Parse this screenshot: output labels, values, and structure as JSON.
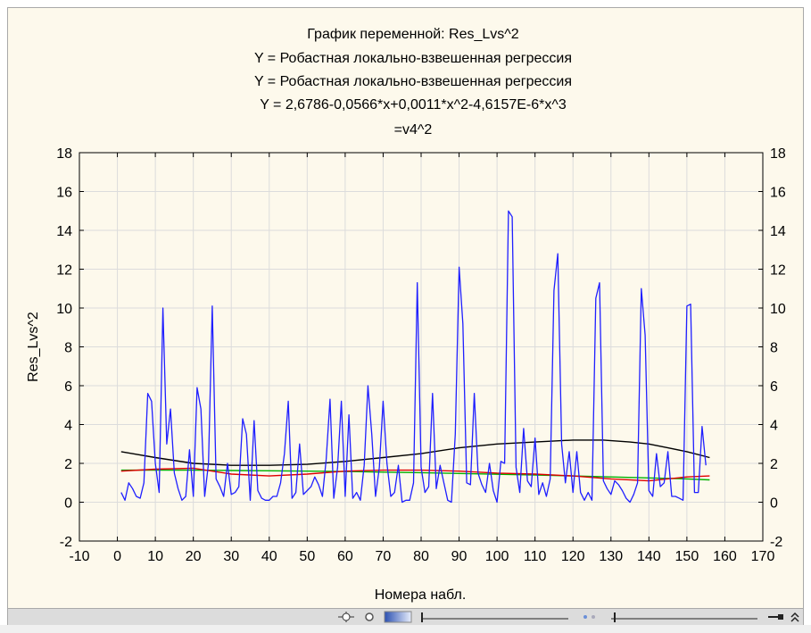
{
  "chart_data": {
    "type": "line",
    "title_lines": [
      "График переменной: Res_Lvs^2",
      "Y = Робастная локально-взвешенная регрессия",
      "Y = Робастная локально-взвешенная регрессия",
      "Y = 2,6786-0,0566*x+0,0011*x^2-4,6157E-6*x^3",
      "=v4^2"
    ],
    "xlabel": "Номера набл.",
    "ylabel": "Res_Lvs^2",
    "xlim": [
      -10,
      170
    ],
    "ylim": [
      -2,
      18
    ],
    "x_ticks": [
      "-10",
      "0",
      "10",
      "20",
      "30",
      "40",
      "50",
      "60",
      "70",
      "80",
      "90",
      "100",
      "110",
      "120",
      "130",
      "140",
      "150",
      "160",
      "170"
    ],
    "y_ticks": [
      "-2",
      "0",
      "2",
      "4",
      "6",
      "8",
      "10",
      "12",
      "14",
      "16",
      "18"
    ],
    "grid": true,
    "colors": {
      "data": "#1f1fff",
      "cubic_fit": "#000000",
      "robust_fit_1": "#e00000",
      "robust_fit_2": "#00b000",
      "background": "#fdf9ec",
      "grid": "#dcdcdc"
    },
    "series": [
      {
        "key": "data",
        "x_start": 1,
        "values": [
          0.5,
          0.1,
          1.0,
          0.7,
          0.3,
          0.2,
          1.0,
          5.6,
          5.2,
          2.0,
          0.5,
          10.0,
          3.0,
          4.8,
          1.5,
          0.7,
          0.1,
          0.3,
          2.7,
          0.3,
          5.9,
          4.8,
          0.3,
          2.0,
          10.1,
          1.2,
          0.8,
          0.3,
          2.0,
          0.4,
          0.5,
          0.8,
          4.3,
          3.5,
          0.1,
          4.2,
          0.6,
          0.2,
          0.1,
          0.1,
          0.3,
          0.3,
          1.0,
          2.5,
          5.2,
          0.2,
          0.5,
          3.0,
          0.4,
          0.6,
          0.8,
          1.3,
          0.9,
          0.3,
          2.2,
          5.3,
          0.2,
          1.8,
          5.2,
          0.3,
          4.5,
          0.2,
          0.5,
          0.1,
          1.9,
          6.0,
          3.5,
          0.3,
          1.8,
          5.2,
          2.0,
          0.3,
          0.5,
          1.9,
          0.0,
          0.1,
          0.1,
          1.0,
          11.3,
          1.8,
          0.5,
          0.8,
          5.6,
          0.7,
          1.9,
          1.0,
          0.1,
          0.0,
          3.5,
          12.1,
          9.2,
          1.0,
          0.9,
          5.6,
          1.5,
          0.9,
          0.5,
          2.0,
          0.6,
          0.0,
          2.1,
          2.0,
          15.0,
          14.7,
          1.8,
          0.5,
          3.8,
          1.1,
          0.8,
          3.3,
          0.4,
          1.0,
          0.3,
          1.2,
          10.9,
          12.8,
          3.0,
          1.0,
          2.6,
          0.5,
          2.6,
          0.5,
          0.1,
          0.5,
          0.1,
          10.5,
          11.3,
          1.1,
          0.7,
          0.4,
          1.1,
          0.9,
          0.6,
          0.2,
          0.0,
          0.4,
          1.0,
          11.0,
          8.6,
          0.6,
          0.3,
          2.5,
          0.8,
          1.0,
          2.6,
          0.3,
          0.3,
          0.2,
          0.1,
          10.1,
          10.2,
          0.5,
          0.5,
          3.9,
          1.9
        ]
      },
      {
        "key": "cubic_fit",
        "x": [
          1,
          10,
          20,
          30,
          40,
          50,
          60,
          70,
          80,
          90,
          100,
          110,
          120,
          128,
          135,
          140,
          145,
          150,
          156
        ],
        "values": [
          2.6,
          2.3,
          2.0,
          1.9,
          1.9,
          1.95,
          2.1,
          2.3,
          2.5,
          2.8,
          3.0,
          3.1,
          3.2,
          3.2,
          3.1,
          3.0,
          2.8,
          2.6,
          2.3
        ]
      },
      {
        "key": "robust_fit_1",
        "x": [
          1,
          10,
          20,
          30,
          40,
          50,
          60,
          70,
          80,
          90,
          100,
          110,
          120,
          130,
          140,
          150,
          156
        ],
        "values": [
          1.6,
          1.7,
          1.75,
          1.45,
          1.35,
          1.45,
          1.6,
          1.65,
          1.65,
          1.6,
          1.5,
          1.45,
          1.35,
          1.2,
          1.1,
          1.3,
          1.35
        ]
      },
      {
        "key": "robust_fit_2",
        "x": [
          1,
          10,
          20,
          30,
          40,
          50,
          60,
          70,
          80,
          90,
          100,
          110,
          120,
          130,
          140,
          150,
          156
        ],
        "values": [
          1.65,
          1.65,
          1.65,
          1.63,
          1.62,
          1.6,
          1.58,
          1.55,
          1.52,
          1.48,
          1.44,
          1.4,
          1.35,
          1.3,
          1.25,
          1.2,
          1.15
        ]
      }
    ]
  },
  "toolbar": {
    "icons": [
      "marker-move-icon",
      "gear-small-icon",
      "gradient-swatch-icon",
      "slider-left-icon",
      "dots-icon",
      "slider-right-icon",
      "pin-icon",
      "chevron-up-icon"
    ]
  }
}
